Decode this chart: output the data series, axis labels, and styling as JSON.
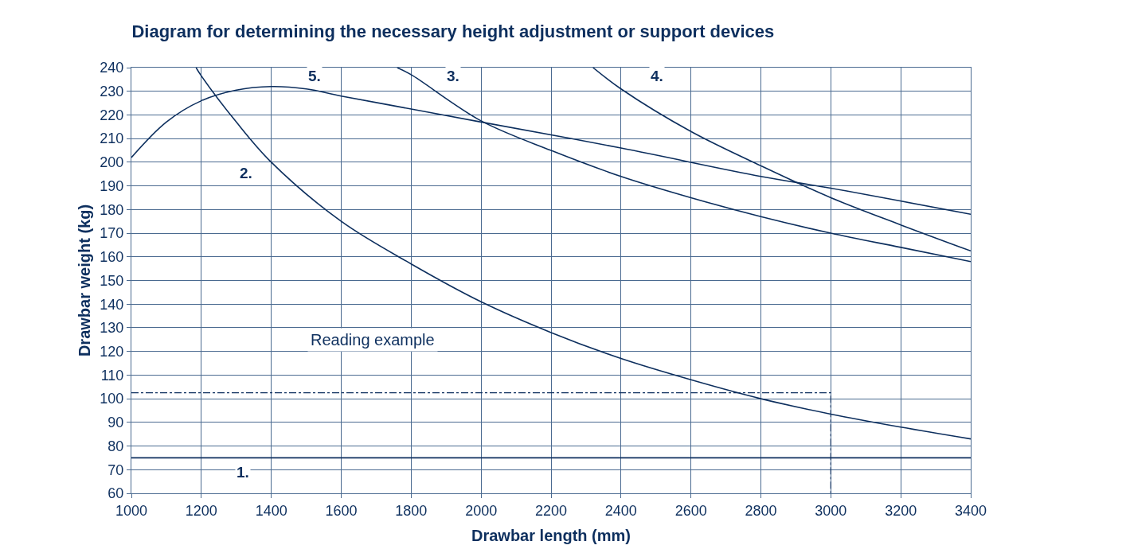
{
  "chart_data": {
    "type": "line",
    "title": "Diagram for determining the necessary height adjustment or support devices",
    "xlabel": "Drawbar length (mm)",
    "ylabel": "Drawbar weight (kg)",
    "xlim": [
      1000,
      3400
    ],
    "xticks": [
      1000,
      1200,
      1400,
      1600,
      1800,
      2000,
      2200,
      2400,
      2600,
      2800,
      3000,
      3200,
      3400
    ],
    "ylim": [
      60,
      240
    ],
    "yticks": [
      60,
      70,
      80,
      90,
      100,
      110,
      120,
      130,
      140,
      150,
      160,
      170,
      180,
      190,
      200,
      210,
      220,
      230,
      240
    ],
    "grid": true,
    "legend": false,
    "marker": "none",
    "line_style": "solid",
    "series": [
      {
        "name": "1.",
        "color": "#0d2f5e",
        "x": [
          1000,
          3400
        ],
        "values": [
          75,
          75
        ]
      },
      {
        "name": "2.",
        "color": "#0d2f5e",
        "x": [
          1185,
          1200,
          1300,
          1400,
          1600,
          1800,
          2000,
          2200,
          2400,
          2600,
          2800,
          3000,
          3200,
          3400
        ],
        "values": [
          240,
          236.5,
          217,
          200,
          175,
          157,
          141,
          128,
          117,
          108,
          100,
          93.5,
          88,
          83
        ]
      },
      {
        "name": "3.",
        "color": "#0d2f5e",
        "x": [
          1760,
          1800,
          2000,
          2200,
          2400,
          2600,
          2800,
          3000,
          3200,
          3400
        ],
        "values": [
          240,
          237,
          217.5,
          205,
          194,
          185,
          177,
          170,
          164,
          158
        ]
      },
      {
        "name": "4.",
        "color": "#0d2f5e",
        "x": [
          2320,
          2400,
          2600,
          2800,
          3000,
          3200,
          3400
        ],
        "values": [
          240,
          231,
          213,
          198.5,
          185,
          173.5,
          162.5
        ]
      },
      {
        "name": "5.",
        "color": "#0d2f5e",
        "x": [
          1000,
          1100,
          1200,
          1300,
          1400,
          1500,
          1600,
          1800,
          2000,
          2400,
          2800,
          3000,
          3400
        ],
        "values": [
          202,
          217,
          226,
          230.5,
          232,
          231,
          228,
          222.5,
          217,
          206,
          194,
          189,
          178
        ]
      },
      {
        "color": "#0d2f5e",
        "line_style": "dashed",
        "x": [
          1000,
          3000,
          3000
        ],
        "values": [
          102.5,
          102.5,
          60
        ]
      }
    ],
    "annotations": [
      "Reading example"
    ]
  }
}
